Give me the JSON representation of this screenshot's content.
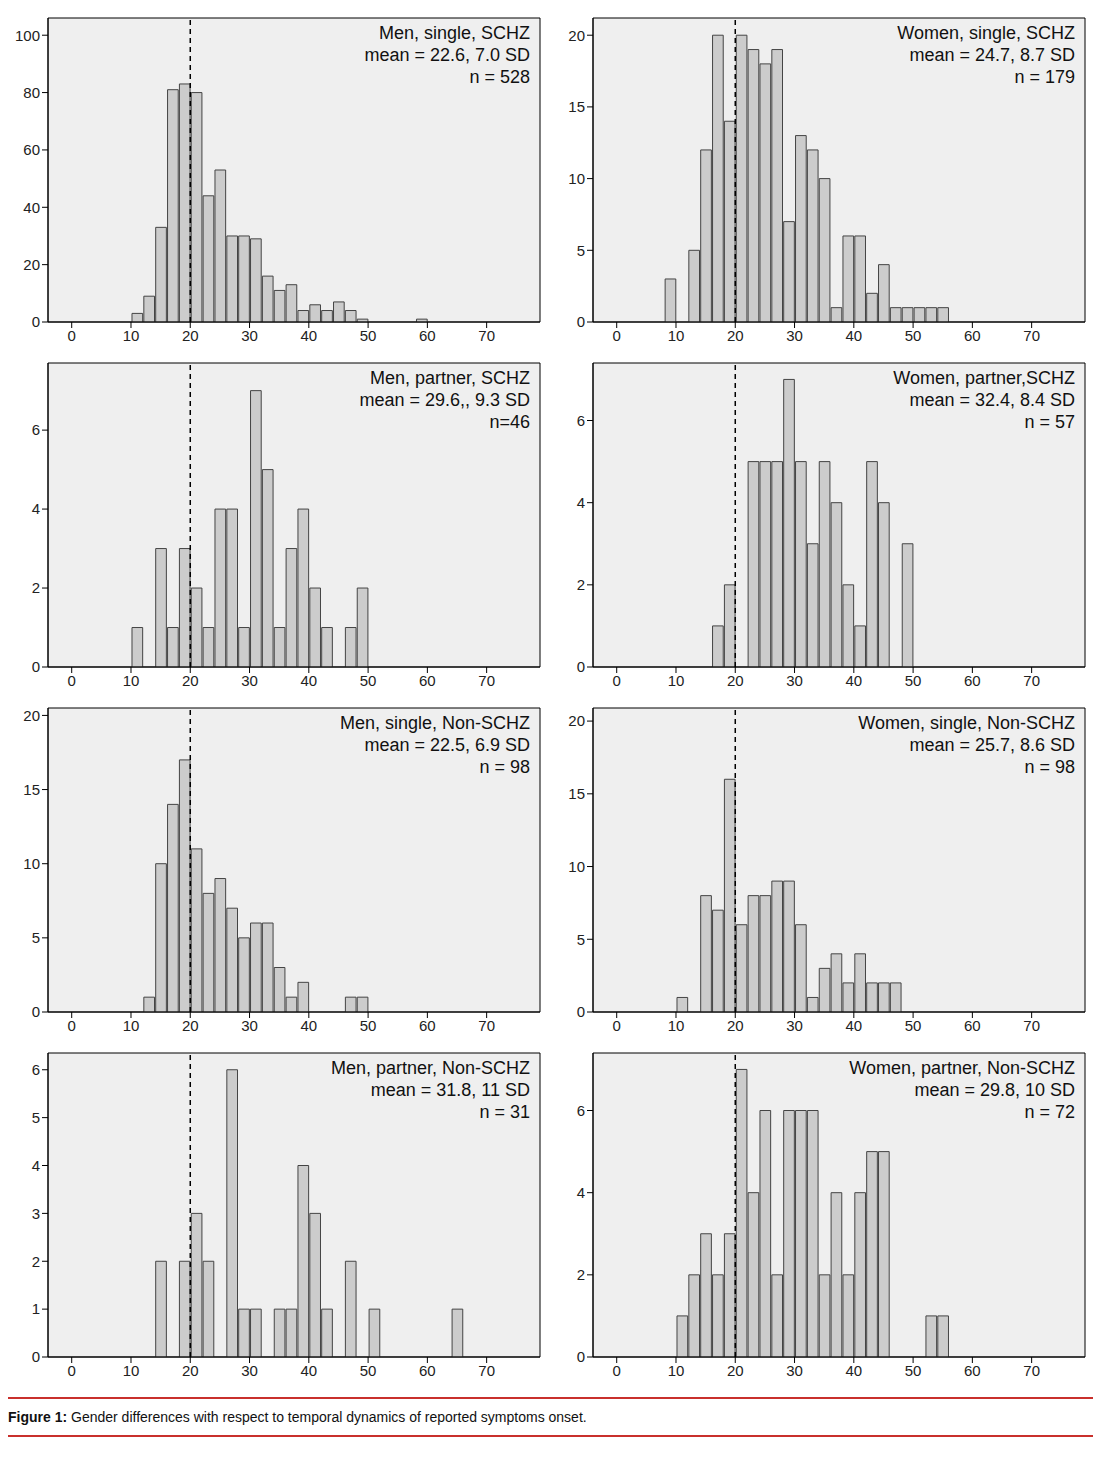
{
  "chart_data": [
    {
      "type": "histogram",
      "title": "Men, single, SCHZ",
      "annotations": [
        "mean = 22.6, 7.0 SD",
        "n = 528"
      ],
      "bins": [
        10,
        12,
        14,
        16,
        18,
        20,
        22,
        24,
        26,
        28,
        30,
        32,
        34,
        36,
        38,
        40,
        42,
        44,
        46,
        48,
        50,
        52,
        54,
        56,
        58,
        60
      ],
      "values": [
        3,
        9,
        33,
        81,
        83,
        80,
        44,
        53,
        30,
        30,
        29,
        16,
        11,
        13,
        4,
        6,
        4,
        7,
        4,
        1,
        0,
        0,
        0,
        0,
        1
      ],
      "color": "#cccccc",
      "xlim": [
        -4,
        79
      ],
      "xticks": [
        0,
        10,
        20,
        30,
        40,
        50,
        60,
        70
      ],
      "ylim": [
        0,
        106
      ],
      "yticks": [
        0,
        20,
        40,
        60,
        80,
        100
      ],
      "grid": false,
      "reference_line": {
        "x": 20,
        "line_style": "dashed"
      }
    },
    {
      "type": "histogram",
      "title": "Women, single, SCHZ",
      "annotations": [
        "mean = 24.7, 8.7 SD",
        "n = 179"
      ],
      "bins": [
        8,
        10,
        12,
        14,
        16,
        18,
        20,
        22,
        24,
        26,
        28,
        30,
        32,
        34,
        36,
        38,
        40,
        42,
        44,
        46,
        48,
        50,
        52,
        54,
        56
      ],
      "values": [
        3,
        0,
        5,
        12,
        20,
        14,
        20,
        19,
        18,
        19,
        7,
        13,
        12,
        10,
        1,
        6,
        6,
        2,
        4,
        1,
        1,
        1,
        1,
        1
      ],
      "color": "#cccccc",
      "xlim": [
        -4,
        79
      ],
      "xticks": [
        0,
        10,
        20,
        30,
        40,
        50,
        60,
        70
      ],
      "ylim": [
        0,
        21.2
      ],
      "yticks": [
        0,
        5,
        10,
        15,
        20
      ],
      "grid": false,
      "reference_line": {
        "x": 20,
        "line_style": "dashed"
      }
    },
    {
      "type": "histogram",
      "title": "Men, partner, SCHZ",
      "annotations": [
        "mean = 29.6,, 9.3 SD",
        "n=46"
      ],
      "bins": [
        10,
        12,
        14,
        16,
        18,
        20,
        22,
        24,
        26,
        28,
        30,
        32,
        34,
        36,
        38,
        40,
        42,
        44,
        46,
        48,
        50
      ],
      "values": [
        1,
        0,
        3,
        1,
        3,
        2,
        1,
        4,
        4,
        1,
        7,
        5,
        1,
        3,
        4,
        2,
        1,
        0,
        1,
        2
      ],
      "color": "#cccccc",
      "xlim": [
        -4,
        79
      ],
      "xticks": [
        0,
        10,
        20,
        30,
        40,
        50,
        60,
        70
      ],
      "ylim": [
        0,
        7.7
      ],
      "yticks": [
        0,
        2,
        4,
        6
      ],
      "grid": false,
      "reference_line": {
        "x": 20,
        "line_style": "dashed"
      }
    },
    {
      "type": "histogram",
      "title": "Women, partner,SCHZ",
      "annotations": [
        "mean = 32.4, 8.4 SD",
        "n = 57"
      ],
      "bins": [
        16,
        18,
        20,
        22,
        24,
        26,
        28,
        30,
        32,
        34,
        36,
        38,
        40,
        42,
        44,
        46,
        48,
        50
      ],
      "values": [
        1,
        2,
        0,
        5,
        5,
        5,
        7,
        5,
        3,
        5,
        4,
        2,
        1,
        5,
        4,
        0,
        3
      ],
      "color": "#cccccc",
      "xlim": [
        -4,
        79
      ],
      "xticks": [
        0,
        10,
        20,
        30,
        40,
        50,
        60,
        70
      ],
      "ylim": [
        0,
        7.4
      ],
      "yticks": [
        0,
        2,
        4,
        6
      ],
      "grid": false,
      "reference_line": {
        "x": 20,
        "line_style": "dashed"
      }
    },
    {
      "type": "histogram",
      "title": "Men, single, Non-SCHZ",
      "annotations": [
        "mean = 22.5, 6.9 SD",
        "n = 98"
      ],
      "bins": [
        12,
        14,
        16,
        18,
        20,
        22,
        24,
        26,
        28,
        30,
        32,
        34,
        36,
        38,
        40,
        42,
        44,
        46,
        48,
        50
      ],
      "values": [
        1,
        10,
        14,
        17,
        11,
        8,
        9,
        7,
        5,
        6,
        6,
        3,
        1,
        2,
        0,
        0,
        0,
        1,
        1
      ],
      "color": "#cccccc",
      "xlim": [
        -4,
        79
      ],
      "xticks": [
        0,
        10,
        20,
        30,
        40,
        50,
        60,
        70
      ],
      "ylim": [
        0,
        20.5
      ],
      "yticks": [
        0,
        5,
        10,
        15,
        20
      ],
      "grid": false,
      "reference_line": {
        "x": 20,
        "line_style": "dashed"
      }
    },
    {
      "type": "histogram",
      "title": "Women, single, Non-SCHZ",
      "annotations": [
        "mean = 25.7, 8.6 SD",
        "n = 98"
      ],
      "bins": [
        10,
        12,
        14,
        16,
        18,
        20,
        22,
        24,
        26,
        28,
        30,
        32,
        34,
        36,
        38,
        40,
        42,
        44,
        46,
        48
      ],
      "values": [
        1,
        0,
        8,
        7,
        16,
        6,
        8,
        8,
        9,
        9,
        6,
        1,
        3,
        4,
        2,
        4,
        2,
        2,
        2
      ],
      "color": "#cccccc",
      "xlim": [
        -4,
        79
      ],
      "xticks": [
        0,
        10,
        20,
        30,
        40,
        50,
        60,
        70
      ],
      "ylim": [
        0,
        20.9
      ],
      "yticks": [
        0,
        5,
        10,
        15,
        20
      ],
      "grid": false,
      "reference_line": {
        "x": 20,
        "line_style": "dashed"
      }
    },
    {
      "type": "histogram",
      "title": "Men, partner, Non-SCHZ",
      "annotations": [
        "mean = 31.8, 11 SD",
        "n = 31"
      ],
      "bins": [
        14,
        16,
        18,
        20,
        22,
        24,
        26,
        28,
        30,
        32,
        34,
        36,
        38,
        40,
        42,
        44,
        46,
        48,
        50,
        52,
        54,
        56,
        58,
        60,
        62,
        64,
        66
      ],
      "values": [
        2,
        0,
        2,
        3,
        2,
        0,
        6,
        1,
        1,
        0,
        1,
        1,
        4,
        3,
        1,
        0,
        2,
        0,
        1,
        0,
        0,
        0,
        0,
        0,
        0,
        1
      ],
      "color": "#cccccc",
      "xlim": [
        -4,
        79
      ],
      "xticks": [
        0,
        10,
        20,
        30,
        40,
        50,
        60,
        70
      ],
      "ylim": [
        0,
        6.35
      ],
      "yticks": [
        0,
        1,
        2,
        3,
        4,
        5,
        6
      ],
      "grid": false,
      "reference_line": {
        "x": 20,
        "line_style": "dashed"
      }
    },
    {
      "type": "histogram",
      "title": "Women, partner, Non-SCHZ",
      "annotations": [
        "mean = 29.8, 10 SD",
        "n = 72"
      ],
      "bins": [
        10,
        12,
        14,
        16,
        18,
        20,
        22,
        24,
        26,
        28,
        30,
        32,
        34,
        36,
        38,
        40,
        42,
        44,
        46,
        48,
        50,
        52,
        54,
        56
      ],
      "values": [
        1,
        2,
        3,
        2,
        3,
        7,
        4,
        6,
        2,
        6,
        6,
        6,
        2,
        4,
        2,
        4,
        5,
        5,
        0,
        0,
        0,
        1,
        1
      ],
      "color": "#cccccc",
      "xlim": [
        -4,
        79
      ],
      "xticks": [
        0,
        10,
        20,
        30,
        40,
        50,
        60,
        70
      ],
      "ylim": [
        0,
        7.4
      ],
      "yticks": [
        0,
        2,
        4,
        6
      ],
      "grid": false,
      "reference_line": {
        "x": 20,
        "line_style": "dashed"
      }
    }
  ],
  "caption": {
    "label": "Figure 1:",
    "text": "Gender differences with respect to temporal dynamics of reported symptoms onset."
  }
}
